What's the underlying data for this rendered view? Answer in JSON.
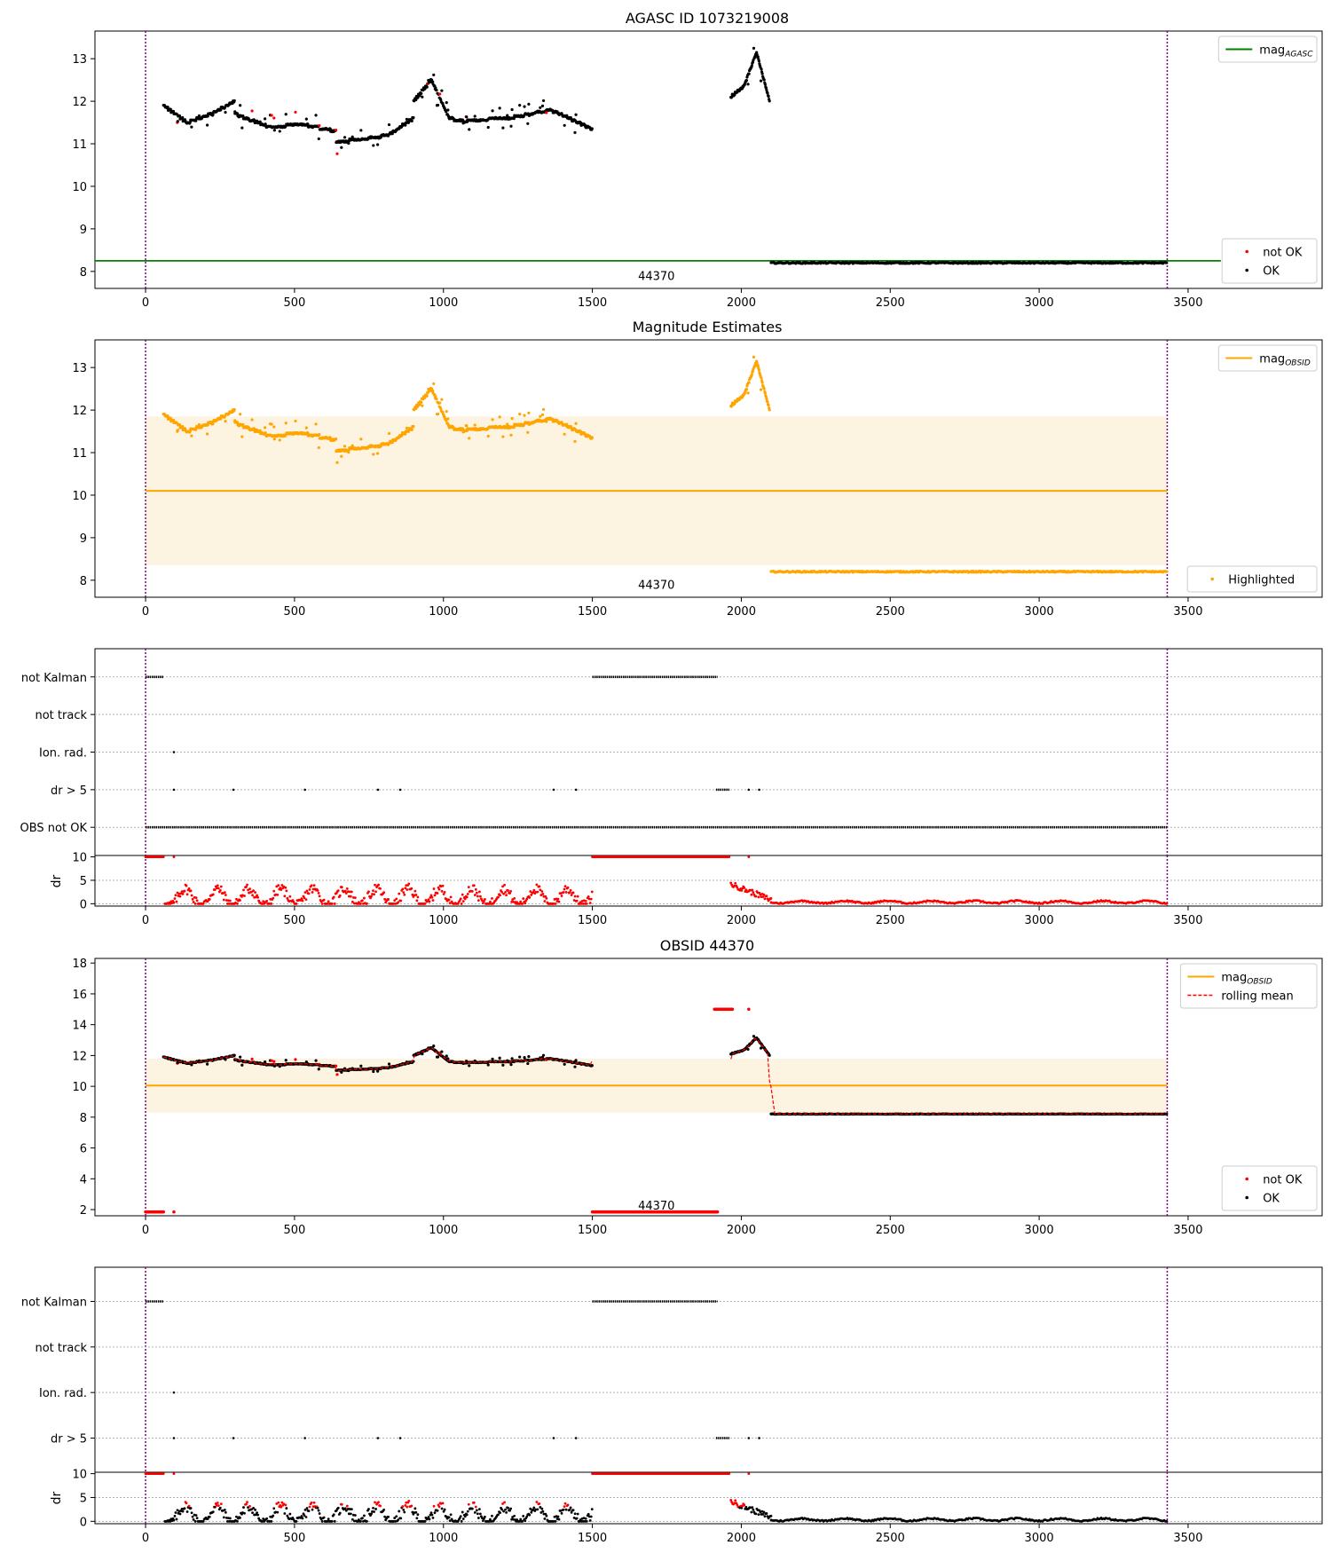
{
  "colors": {
    "agasc_line": "#008000",
    "obsid_line": "#ffa500",
    "band_fill": "#fdf3e1",
    "ok_points": "#000000",
    "not_ok_points": "#ff0000",
    "rolling_mean": "#ff0000",
    "obs_markers": "#800080",
    "grid": "#b0b0b0"
  },
  "chart_data": [
    {
      "id": "agasc",
      "type": "scatter",
      "title": "AGASC ID 1073219008",
      "xlim": [
        -170,
        3950
      ],
      "ylim": [
        7.6,
        13.65
      ],
      "yticks": [
        8,
        9,
        10,
        11,
        12,
        13
      ],
      "xticks": [
        0,
        500,
        1000,
        1500,
        2000,
        2500,
        3000,
        3500
      ],
      "obs_boundaries": [
        0,
        3430
      ],
      "obs_label": {
        "text": "44370",
        "x": 1715,
        "y": 7.9
      },
      "hline": {
        "name": "mag_AGASC",
        "value": 8.25,
        "x_range": [
          -170,
          3610
        ]
      },
      "legends": [
        {
          "position": "upper-right",
          "entries": [
            {
              "label": "mag",
              "sub": "AGASC",
              "kind": "line",
              "color": "#008000"
            }
          ]
        },
        {
          "position": "lower-right",
          "entries": [
            {
              "label": "not OK",
              "kind": "dot",
              "color": "#ff0000"
            },
            {
              "label": "OK",
              "kind": "dot",
              "color": "#000000"
            }
          ]
        }
      ]
    },
    {
      "id": "estimates",
      "type": "scatter",
      "title": "Magnitude Estimates",
      "xlim": [
        -170,
        3950
      ],
      "ylim": [
        7.6,
        13.65
      ],
      "yticks": [
        8,
        9,
        10,
        11,
        12,
        13
      ],
      "xticks": [
        0,
        500,
        1000,
        1500,
        2000,
        2500,
        3000,
        3500
      ],
      "obs_boundaries": [
        0,
        3430
      ],
      "obs_label": {
        "text": "44370",
        "x": 1715,
        "y": 7.9
      },
      "band": {
        "y_low": 8.35,
        "y_high": 11.85,
        "x_range": [
          0,
          3430
        ]
      },
      "hline": {
        "name": "mag_OBSID",
        "value": 10.1,
        "x_range": [
          0,
          3430
        ]
      },
      "legends": [
        {
          "position": "upper-right",
          "entries": [
            {
              "label": "mag",
              "sub": "OBSID",
              "kind": "line",
              "color": "#ffa500"
            }
          ]
        },
        {
          "position": "lower-right",
          "entries": [
            {
              "label": "Highlighted",
              "kind": "dot",
              "color": "#ffa500"
            }
          ]
        }
      ]
    },
    {
      "id": "flags1",
      "type": "scatter",
      "xlim": [
        -170,
        3950
      ],
      "categories": [
        "not Kalman",
        "not track",
        "Ion. rad.",
        "dr > 5",
        "OBS not OK"
      ],
      "obs_boundaries": [
        0,
        3430
      ],
      "rows": {
        "not Kalman": [
          [
            0,
            60
          ],
          [
            1500,
            1920
          ]
        ],
        "not track": [],
        "Ion. rad.": [
          [
            95,
            95
          ]
        ],
        "dr > 5": [
          [
            95,
            95
          ],
          [
            295,
            295
          ],
          [
            535,
            535
          ],
          [
            780,
            780
          ],
          [
            855,
            855
          ],
          [
            1370,
            1370
          ],
          [
            1445,
            1445
          ],
          [
            1915,
            1960
          ],
          [
            2025,
            2025
          ],
          [
            2060,
            2060
          ]
        ],
        "OBS not OK": [
          [
            0,
            3430
          ]
        ]
      }
    },
    {
      "id": "dr1",
      "type": "scatter",
      "xlim": [
        -170,
        3950
      ],
      "ylim": [
        -0.5,
        10.3
      ],
      "yticks": [
        0,
        5,
        10
      ],
      "ylabel": "dr",
      "xticks": [
        0,
        500,
        1000,
        1500,
        2000,
        2500,
        3000,
        3500
      ],
      "obs_boundaries": [
        0,
        3430
      ],
      "color_mode": "all-red"
    },
    {
      "id": "obsid",
      "type": "scatter",
      "title": "OBSID 44370",
      "xlim": [
        -170,
        3950
      ],
      "ylim": [
        1.6,
        18.3
      ],
      "yticks": [
        2,
        4,
        6,
        8,
        10,
        12,
        14,
        16,
        18
      ],
      "xticks": [
        0,
        500,
        1000,
        1500,
        2000,
        2500,
        3000,
        3500
      ],
      "obs_boundaries": [
        0,
        3430
      ],
      "obs_label": {
        "text": "44370",
        "x": 1715,
        "y": 2.3
      },
      "band": {
        "y_low": 8.3,
        "y_high": 11.8,
        "x_range": [
          0,
          3430
        ]
      },
      "hline": {
        "name": "mag_OBSID",
        "value": 10.05,
        "x_range": [
          0,
          3430
        ]
      },
      "legends": [
        {
          "position": "upper-right",
          "entries": [
            {
              "label": "mag",
              "sub": "OBSID",
              "kind": "line",
              "color": "#ffa500"
            },
            {
              "label": "rolling mean",
              "kind": "dash",
              "color": "#ff0000"
            }
          ]
        },
        {
          "position": "lower-right",
          "entries": [
            {
              "label": "not OK",
              "kind": "dot",
              "color": "#ff0000"
            },
            {
              "label": "OK",
              "kind": "dot",
              "color": "#000000"
            }
          ]
        }
      ]
    },
    {
      "id": "flags2",
      "type": "scatter",
      "xlim": [
        -170,
        3950
      ],
      "categories": [
        "not Kalman",
        "not track",
        "Ion. rad.",
        "dr > 5"
      ],
      "obs_boundaries": [
        0,
        3430
      ],
      "rows": {
        "not Kalman": [
          [
            0,
            60
          ],
          [
            1500,
            1920
          ]
        ],
        "not track": [],
        "Ion. rad.": [
          [
            95,
            95
          ]
        ],
        "dr > 5": [
          [
            95,
            95
          ],
          [
            295,
            295
          ],
          [
            535,
            535
          ],
          [
            780,
            780
          ],
          [
            855,
            855
          ],
          [
            1370,
            1370
          ],
          [
            1445,
            1445
          ],
          [
            1915,
            1960
          ],
          [
            2025,
            2025
          ],
          [
            2060,
            2060
          ]
        ]
      }
    },
    {
      "id": "dr2",
      "type": "scatter",
      "xlim": [
        -170,
        3950
      ],
      "ylim": [
        -0.5,
        10.3
      ],
      "yticks": [
        0,
        5,
        10
      ],
      "ylabel": "dr",
      "xticks": [
        0,
        500,
        1000,
        1500,
        2000,
        2500,
        3000,
        3500
      ],
      "obs_boundaries": [
        0,
        3430
      ],
      "color_mode": "ok-mixed"
    }
  ],
  "series_shape": {
    "segments": [
      {
        "x": [
          60,
          300
        ],
        "mag": [
          11.9,
          11.5,
          11.7,
          12.0
        ]
      },
      {
        "x": [
          300,
          640
        ],
        "mag": [
          11.7,
          11.4,
          11.45,
          11.3
        ]
      },
      {
        "x": [
          640,
          900
        ],
        "mag": [
          11.05,
          11.1,
          11.2,
          11.6
        ]
      },
      {
        "x": [
          900,
          1080
        ],
        "mag": [
          12.0,
          12.5,
          11.6,
          11.5
        ]
      },
      {
        "x": [
          1080,
          1500
        ],
        "mag": [
          11.55,
          11.6,
          11.8,
          11.35
        ]
      },
      {
        "x": [
          1965,
          2095
        ],
        "mag": [
          12.1,
          12.35,
          13.15,
          12.0
        ]
      },
      {
        "x": [
          2100,
          3430
        ],
        "mag": [
          8.22,
          8.22,
          8.22,
          8.22
        ]
      }
    ],
    "saturated_mag": 15.0,
    "low_mag": 1.85
  }
}
